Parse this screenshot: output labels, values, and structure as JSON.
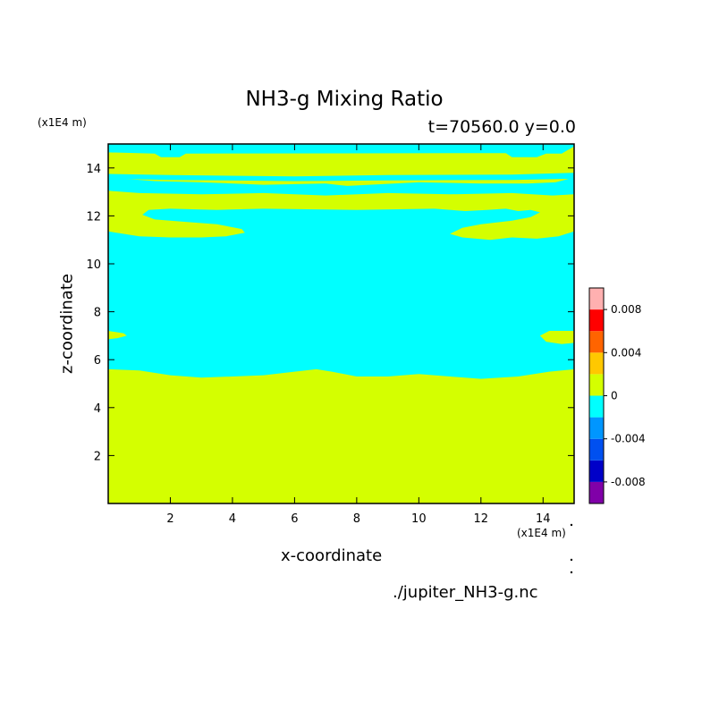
{
  "chart_data": {
    "type": "heatmap",
    "title": "NH3-g Mixing Ratio",
    "subtitle": "t=70560.0 y=0.0",
    "xlabel": "x-coordinate",
    "ylabel": "z-coordinate",
    "x_unit": "(x1E4 m)",
    "y_unit": "(x1E4 m)",
    "source": "./jupiter_NH3-g.nc",
    "xlim": [
      0,
      15
    ],
    "ylim": [
      0,
      15
    ],
    "x_ticks": [
      "2",
      "4",
      "6",
      "8",
      "10",
      "12",
      "14"
    ],
    "y_ticks": [
      "2",
      "4",
      "6",
      "8",
      "10",
      "12",
      "14"
    ],
    "colorbar": {
      "levels": [
        -0.01,
        -0.008,
        -0.006,
        -0.004,
        -0.002,
        0,
        0.002,
        0.004,
        0.006,
        0.008,
        0.01
      ],
      "colors": [
        "#8000a8",
        "#0000c8",
        "#0050f0",
        "#0096ff",
        "#00ffff",
        "#d4ff00",
        "#ffc800",
        "#ff6400",
        "#ff0000",
        "#ffb0b0"
      ],
      "tick_labels": [
        "-0.008",
        "-0.004",
        "0",
        "0.004",
        "0.008"
      ],
      "tick_values": [
        -0.008,
        -0.004,
        0,
        0.004,
        0.008
      ]
    },
    "background_class": "0 to 0.002",
    "regions": [
      {
        "name": "upper-negative-band",
        "class": "-0.002 to 0",
        "x": [
          0,
          15
        ],
        "z_range": [
          5.4,
          15.0
        ]
      },
      {
        "name": "top-positive-layer",
        "class": "0 to 0.002",
        "x": [
          0,
          15
        ],
        "z_range": [
          13.3,
          14.6
        ]
      },
      {
        "name": "upper-positive-filament",
        "class": "0 to 0.002",
        "x": [
          0,
          15
        ],
        "z_range": [
          11.1,
          13.0
        ]
      },
      {
        "name": "left-positive-tongue",
        "class": "0 to 0.002",
        "x": [
          0,
          0.6
        ],
        "z_range": [
          6.9,
          7.2
        ]
      },
      {
        "name": "right-positive-tongue",
        "class": "0 to 0.002",
        "x": [
          13.9,
          15
        ],
        "z_range": [
          6.6,
          7.2
        ]
      }
    ]
  }
}
